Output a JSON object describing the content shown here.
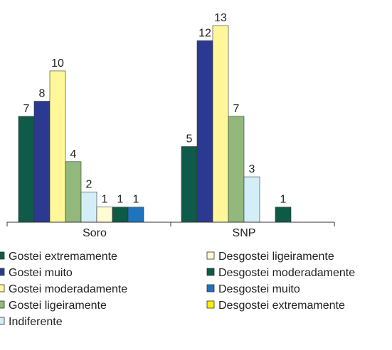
{
  "chart_data": {
    "type": "bar",
    "categories": [
      "Soro",
      "SNP"
    ],
    "series": [
      {
        "name": "Gostei extremamente",
        "color": "#0f5a48",
        "values": [
          7,
          5
        ]
      },
      {
        "name": "Gostei muito",
        "color": "#2b3a90",
        "values": [
          8,
          12
        ]
      },
      {
        "name": "Gostei moderadamente",
        "color": "#fff79a",
        "values": [
          10,
          13
        ]
      },
      {
        "name": "Gostei ligeiramente",
        "color": "#93b87c",
        "values": [
          4,
          7
        ]
      },
      {
        "name": "Indiferente",
        "color": "#d3eef6",
        "values": [
          2,
          3
        ]
      },
      {
        "name": "Desgostei ligeiramente",
        "color": "#fffbd2",
        "values": [
          1,
          null
        ]
      },
      {
        "name": "Desgostei moderadamente",
        "color": "#0d5a47",
        "values": [
          1,
          1
        ]
      },
      {
        "name": "Desgostei muito",
        "color": "#1f74bd",
        "values": [
          1,
          null
        ]
      },
      {
        "name": "Desgostei extremamente",
        "color": "#ffee00",
        "values": [
          null,
          null
        ]
      }
    ]
  }
}
